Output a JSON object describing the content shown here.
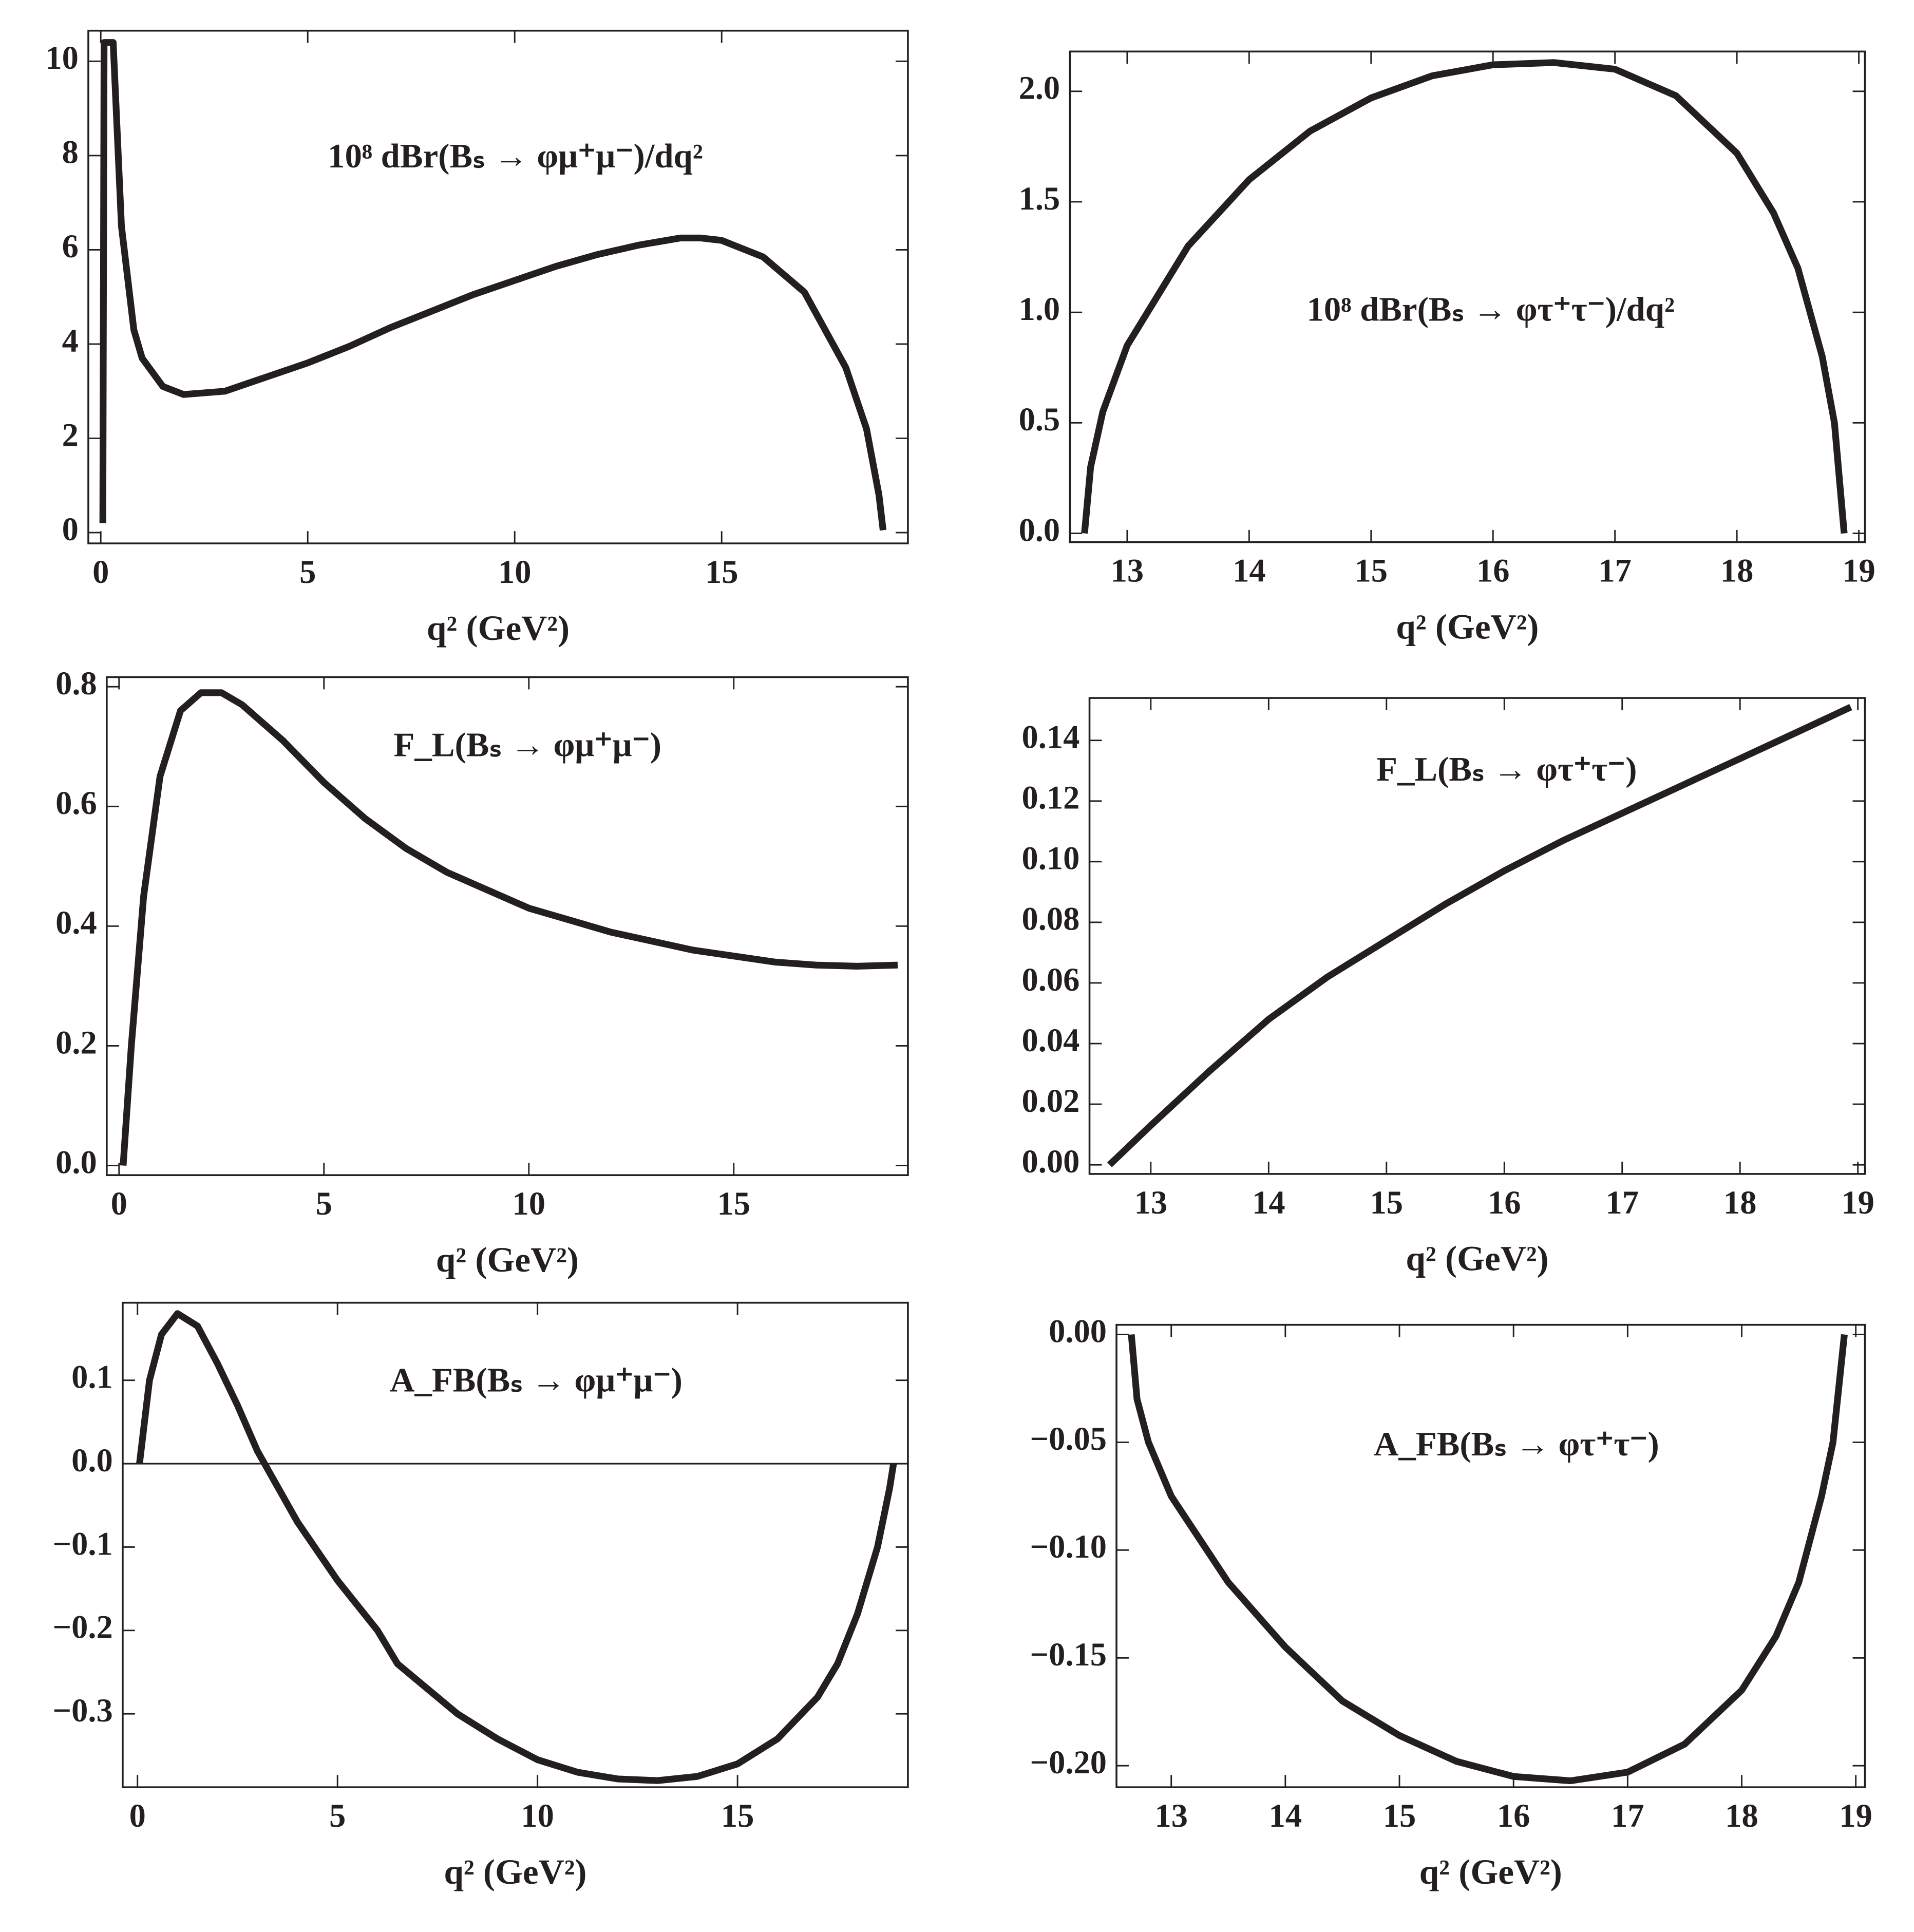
{
  "chart_data": [
    {
      "type": "line",
      "annotation": "10⁸ dBr(Bₛ → φμ⁺μ⁻)/dq²",
      "xlabel": "q² (GeV²)",
      "color": "#231f20",
      "x": [
        0.05,
        0.08,
        0.3,
        0.5,
        0.8,
        1,
        1.5,
        2,
        3,
        4,
        5,
        6,
        6.5,
        7,
        8,
        9,
        10,
        11,
        12,
        13,
        14,
        14.5,
        15,
        16,
        17,
        18,
        18.5,
        18.8,
        18.9
      ],
      "values": [
        0.2,
        10.4,
        10.4,
        6.5,
        4.3,
        3.7,
        3.1,
        2.93,
        3.0,
        3.3,
        3.6,
        3.95,
        4.15,
        4.35,
        4.7,
        5.05,
        5.35,
        5.65,
        5.9,
        6.1,
        6.25,
        6.25,
        6.2,
        5.85,
        5.1,
        3.5,
        2.2,
        0.8,
        0.05
      ],
      "xlim": [
        -0.3,
        19.5
      ],
      "ylim": [
        -0.23,
        10.65
      ],
      "xticks": [
        0,
        5,
        10,
        15
      ],
      "yticks": [
        0,
        2,
        4,
        6,
        8,
        10
      ]
    },
    {
      "type": "line",
      "annotation": "10⁸ dBr(Bₛ → φτ⁺τ⁻)/dq²",
      "xlabel": "q² (GeV²)",
      "color": "#231f20",
      "x": [
        12.65,
        12.7,
        12.8,
        13,
        13.5,
        14,
        14.5,
        15,
        15.5,
        16,
        16.5,
        17,
        17.5,
        18,
        18.3,
        18.5,
        18.7,
        18.8,
        18.88
      ],
      "values": [
        0,
        0.3,
        0.55,
        0.85,
        1.3,
        1.6,
        1.82,
        1.97,
        2.07,
        2.12,
        2.13,
        2.1,
        1.98,
        1.72,
        1.45,
        1.2,
        0.8,
        0.5,
        0
      ],
      "xlim": [
        12.53,
        19.05
      ],
      "ylim": [
        -0.04,
        2.18
      ],
      "xticks": [
        13,
        14,
        15,
        16,
        17,
        18,
        19
      ],
      "yticks": [
        {
          "value": 0,
          "label": "0.0"
        },
        {
          "value": 0.5,
          "label": "0.5"
        },
        {
          "value": 1,
          "label": "1.0"
        },
        {
          "value": 1.5,
          "label": "1.5"
        },
        {
          "value": 2,
          "label": "2.0"
        }
      ]
    },
    {
      "type": "line",
      "annotation": "F_L(Bₛ → φμ⁺μ⁻)",
      "xlabel": "q² (GeV²)",
      "color": "#231f20",
      "x": [
        0.1,
        0.3,
        0.6,
        1,
        1.5,
        2,
        2.5,
        3,
        4,
        5,
        6,
        7,
        8,
        9,
        10,
        11,
        12,
        13,
        14,
        15,
        16,
        17,
        18,
        19
      ],
      "values": [
        0,
        0.2,
        0.45,
        0.65,
        0.76,
        0.79,
        0.79,
        0.77,
        0.71,
        0.64,
        0.58,
        0.53,
        0.49,
        0.46,
        0.43,
        0.41,
        0.39,
        0.375,
        0.36,
        0.35,
        0.34,
        0.335,
        0.333,
        0.335
      ],
      "xlim": [
        -0.3,
        19.25
      ],
      "ylim": [
        -0.016,
        0.816
      ],
      "xticks": [
        0,
        5,
        10,
        15
      ],
      "yticks": [
        {
          "value": 0,
          "label": "0.0"
        },
        {
          "value": 0.2,
          "label": "0.2"
        },
        {
          "value": 0.4,
          "label": "0.4"
        },
        {
          "value": 0.6,
          "label": "0.6"
        },
        {
          "value": 0.8,
          "label": "0.8"
        }
      ]
    },
    {
      "type": "line",
      "annotation": "F_L(Bₛ → φτ⁺τ⁻)",
      "xlabel": "q² (GeV²)",
      "color": "#231f20",
      "x": [
        12.65,
        13,
        13.5,
        14,
        14.5,
        15,
        15.5,
        16,
        16.5,
        17,
        17.5,
        18,
        18.5,
        18.94
      ],
      "values": [
        0,
        0.013,
        0.031,
        0.048,
        0.062,
        0.074,
        0.086,
        0.097,
        0.107,
        0.116,
        0.125,
        0.134,
        0.143,
        0.151
      ],
      "xlim": [
        12.48,
        19.06
      ],
      "ylim": [
        -0.003,
        0.154
      ],
      "xticks": [
        13,
        14,
        15,
        16,
        17,
        18,
        19
      ],
      "yticks": [
        {
          "value": 0,
          "label": "0.00"
        },
        {
          "value": 0.02,
          "label": "0.02"
        },
        {
          "value": 0.04,
          "label": "0.04"
        },
        {
          "value": 0.06,
          "label": "0.06"
        },
        {
          "value": 0.08,
          "label": "0.08"
        },
        {
          "value": 0.1,
          "label": "0.10"
        },
        {
          "value": 0.12,
          "label": "0.12"
        },
        {
          "value": 0.14,
          "label": "0.14"
        }
      ]
    },
    {
      "type": "line",
      "annotation": "A_FB(Bₛ → φμ⁺μ⁻)",
      "xlabel": "q² (GeV²)",
      "color": "#231f20",
      "zero_line": true,
      "x": [
        0.05,
        0.3,
        0.6,
        1,
        1.5,
        2,
        2.5,
        3,
        4,
        5,
        6,
        6.5,
        7,
        8,
        9,
        10,
        11,
        12,
        13,
        14,
        15,
        16,
        17,
        17.5,
        18,
        18.5,
        18.8,
        18.9
      ],
      "values": [
        0,
        0.1,
        0.155,
        0.18,
        0.165,
        0.12,
        0.07,
        0.015,
        -0.07,
        -0.14,
        -0.2,
        -0.24,
        -0.26,
        -0.3,
        -0.33,
        -0.355,
        -0.37,
        -0.378,
        -0.38,
        -0.375,
        -0.36,
        -0.33,
        -0.28,
        -0.24,
        -0.18,
        -0.1,
        -0.03,
        0
      ],
      "xlim": [
        -0.37,
        19.26
      ],
      "ylim": [
        -0.388,
        0.193
      ],
      "xticks": [
        0,
        5,
        10,
        15
      ],
      "yticks": [
        {
          "value": -0.3,
          "label": "−0.3"
        },
        {
          "value": -0.2,
          "label": "−0.2"
        },
        {
          "value": -0.1,
          "label": "−0.1"
        },
        {
          "value": 0,
          "label": "0.0"
        },
        {
          "value": 0.1,
          "label": "0.1"
        }
      ]
    },
    {
      "type": "line",
      "annotation": "A_FB(Bₛ → φτ⁺τ⁻)",
      "xlabel": "q² (GeV²)",
      "color": "#231f20",
      "x": [
        12.65,
        12.7,
        12.8,
        13,
        13.5,
        14,
        14.5,
        15,
        15.5,
        16,
        16.5,
        17,
        17.5,
        18,
        18.3,
        18.5,
        18.7,
        18.8,
        18.9
      ],
      "values": [
        0,
        -0.03,
        -0.05,
        -0.075,
        -0.115,
        -0.145,
        -0.17,
        -0.186,
        -0.198,
        -0.205,
        -0.207,
        -0.203,
        -0.19,
        -0.165,
        -0.14,
        -0.115,
        -0.075,
        -0.05,
        0
      ],
      "xlim": [
        12.52,
        19.08
      ],
      "ylim": [
        -0.21,
        0.0045
      ],
      "xticks": [
        13,
        14,
        15,
        16,
        17,
        18,
        19
      ],
      "yticks": [
        {
          "value": -0.2,
          "label": "−0.20"
        },
        {
          "value": -0.15,
          "label": "−0.15"
        },
        {
          "value": -0.1,
          "label": "−0.10"
        },
        {
          "value": -0.05,
          "label": "−0.05"
        },
        {
          "value": 0,
          "label": "0.00"
        }
      ]
    }
  ]
}
